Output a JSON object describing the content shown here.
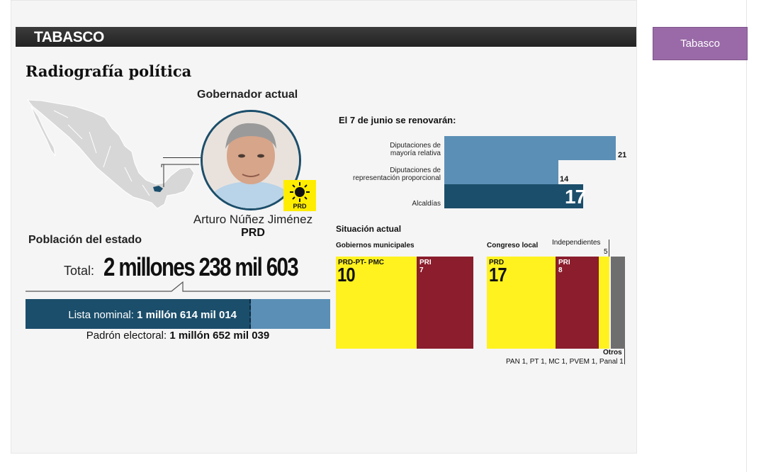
{
  "header": {
    "state": "TABASCO"
  },
  "tab": {
    "label": "Tabasco"
  },
  "infographic": {
    "subtitle": "Radiografía política",
    "governor": {
      "label": "Gobernador actual",
      "name": "Arturo Núñez Jiménez",
      "party": "PRD",
      "logo_text": "PRD"
    },
    "population": {
      "label": "Población del estado",
      "total_label": "Total:",
      "total_value": "2 millones 238 mil 603",
      "lista_label": "Lista nominal:",
      "lista_value": "1 millón 614 mil 014",
      "padron_label": "Padrón electoral:",
      "padron_value": "1 millón 652 mil 039"
    },
    "renewal": {
      "title": "El 7 de junio se renovarán:",
      "items": [
        {
          "label_1": "Diputaciones de",
          "label_2": "mayoría relativa",
          "value": "21"
        },
        {
          "label_1": "Diputaciones de",
          "label_2": "representación proporcional",
          "value": "14"
        },
        {
          "label_1": "Alcaldías",
          "label_2": "",
          "value": "17"
        }
      ]
    },
    "situation": {
      "title": "Situación actual",
      "municipal": {
        "title": "Gobiernos municipales",
        "segments": [
          {
            "party": "PRD-PT- PMC",
            "value": "10",
            "color": "#fff21f"
          },
          {
            "party": "PRI",
            "value": "7",
            "color": "#8b1d2c"
          }
        ]
      },
      "congress": {
        "title": "Congreso local",
        "segments": [
          {
            "party": "PRD",
            "value": "17",
            "color": "#fff21f"
          },
          {
            "party": "PRI",
            "value": "8",
            "color": "#8b1d2c"
          }
        ],
        "independientes_label": "Independientes",
        "independientes_value": "5",
        "otros_label": "Otros",
        "otros_detail": "PAN 1, PT 1, MC 1, PVEM 1, Panal 1"
      }
    }
  },
  "colors": {
    "dark_blue": "#1b4e6b",
    "light_blue": "#5b8fb6",
    "purple_tab": "#9a6aa8",
    "prd_yellow": "#fff21f",
    "pri_red": "#8b1d2c"
  }
}
